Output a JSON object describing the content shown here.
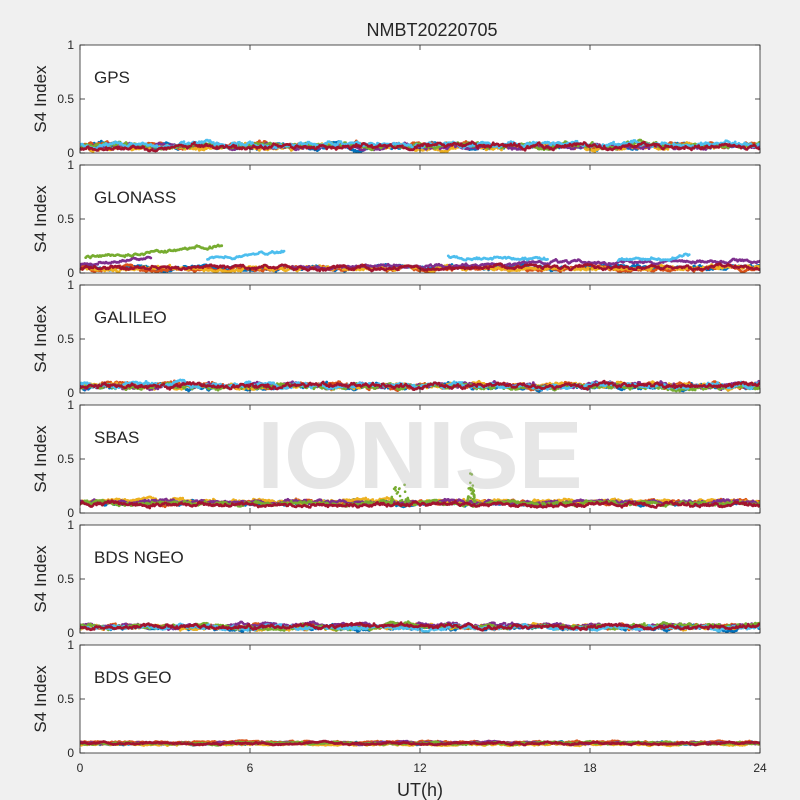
{
  "figure": {
    "title": "NMBT20220705",
    "xlabel": "UT(h)",
    "watermark": "IONISE"
  },
  "chart_data": [
    {
      "type": "scatter",
      "panel_label": "GPS",
      "ylabel": "S4 Index",
      "xlim": [
        0,
        24
      ],
      "ylim": [
        0,
        1
      ],
      "xticks": [
        0,
        6,
        12,
        18,
        24
      ],
      "yticks": [
        0,
        0.5,
        1
      ],
      "ytick_labels": [
        "0",
        "0.5",
        "1"
      ],
      "series": [
        {
          "color": "#0072BD",
          "segments": [
            {
              "x": [
                0,
                24
              ],
              "y": [
                0.06,
                0.06
              ],
              "amp": 0.03
            }
          ]
        },
        {
          "color": "#D95319",
          "segments": [
            {
              "x": [
                0,
                24
              ],
              "y": [
                0.07,
                0.07
              ],
              "amp": 0.03
            }
          ]
        },
        {
          "color": "#EDB120",
          "segments": [
            {
              "x": [
                0,
                24
              ],
              "y": [
                0.05,
                0.06
              ],
              "amp": 0.03
            }
          ]
        },
        {
          "color": "#7E2F8E",
          "segments": [
            {
              "x": [
                0,
                24
              ],
              "y": [
                0.06,
                0.06
              ],
              "amp": 0.03
            }
          ]
        },
        {
          "color": "#77AC30",
          "segments": [
            {
              "x": [
                0,
                24
              ],
              "y": [
                0.07,
                0.07
              ],
              "amp": 0.03
            }
          ]
        },
        {
          "color": "#4DBEEE",
          "segments": [
            {
              "x": [
                0,
                24
              ],
              "y": [
                0.08,
                0.08
              ],
              "amp": 0.03
            }
          ]
        },
        {
          "color": "#A2142F",
          "segments": [
            {
              "x": [
                0,
                24
              ],
              "y": [
                0.06,
                0.06
              ],
              "amp": 0.03
            }
          ]
        }
      ]
    },
    {
      "type": "scatter",
      "panel_label": "GLONASS",
      "ylabel": "S4 Index",
      "xlim": [
        0,
        24
      ],
      "ylim": [
        0,
        1
      ],
      "xticks": [
        0,
        6,
        12,
        18,
        24
      ],
      "yticks": [
        0,
        0.5,
        1
      ],
      "ytick_labels": [
        "0",
        "0.5",
        "1"
      ],
      "series": [
        {
          "color": "#0072BD",
          "segments": [
            {
              "x": [
                0,
                24
              ],
              "y": [
                0.05,
                0.05
              ],
              "amp": 0.025
            }
          ]
        },
        {
          "color": "#D95319",
          "segments": [
            {
              "x": [
                0,
                24
              ],
              "y": [
                0.04,
                0.04
              ],
              "amp": 0.025
            }
          ]
        },
        {
          "color": "#EDB120",
          "segments": [
            {
              "x": [
                0,
                24
              ],
              "y": [
                0.04,
                0.05
              ],
              "amp": 0.025
            }
          ]
        },
        {
          "color": "#7E2F8E",
          "segments": [
            {
              "x": [
                0,
                2.5
              ],
              "y": [
                0.07,
                0.15
              ],
              "amp": 0.02
            },
            {
              "x": [
                7.5,
                24
              ],
              "y": [
                0.05,
                0.12
              ],
              "amp": 0.02
            }
          ]
        },
        {
          "color": "#77AC30",
          "segments": [
            {
              "x": [
                0.2,
                5
              ],
              "y": [
                0.14,
                0.25
              ],
              "amp": 0.02
            }
          ]
        },
        {
          "color": "#4DBEEE",
          "segments": [
            {
              "x": [
                4.5,
                7.2
              ],
              "y": [
                0.13,
                0.2
              ],
              "amp": 0.02
            },
            {
              "x": [
                13,
                16.5
              ],
              "y": [
                0.15,
                0.13
              ],
              "amp": 0.02
            },
            {
              "x": [
                19,
                21.5
              ],
              "y": [
                0.12,
                0.16
              ],
              "amp": 0.02
            }
          ]
        },
        {
          "color": "#A2142F",
          "segments": [
            {
              "x": [
                0,
                24
              ],
              "y": [
                0.05,
                0.05
              ],
              "amp": 0.025
            }
          ]
        }
      ]
    },
    {
      "type": "scatter",
      "panel_label": "GALILEO",
      "ylabel": "S4 Index",
      "xlim": [
        0,
        24
      ],
      "ylim": [
        0,
        1
      ],
      "xticks": [
        0,
        6,
        12,
        18,
        24
      ],
      "yticks": [
        0,
        0.5,
        1
      ],
      "ytick_labels": [
        "0",
        "0.5",
        "1"
      ],
      "series": [
        {
          "color": "#0072BD",
          "segments": [
            {
              "x": [
                0,
                24
              ],
              "y": [
                0.06,
                0.06
              ],
              "amp": 0.03
            }
          ]
        },
        {
          "color": "#D95319",
          "segments": [
            {
              "x": [
                0,
                24
              ],
              "y": [
                0.07,
                0.07
              ],
              "amp": 0.03
            }
          ]
        },
        {
          "color": "#EDB120",
          "segments": [
            {
              "x": [
                0,
                24
              ],
              "y": [
                0.06,
                0.07
              ],
              "amp": 0.03
            }
          ]
        },
        {
          "color": "#7E2F8E",
          "segments": [
            {
              "x": [
                0,
                24
              ],
              "y": [
                0.07,
                0.07
              ],
              "amp": 0.03
            }
          ]
        },
        {
          "color": "#77AC30",
          "segments": [
            {
              "x": [
                0,
                24
              ],
              "y": [
                0.06,
                0.06
              ],
              "amp": 0.03
            }
          ]
        },
        {
          "color": "#4DBEEE",
          "segments": [
            {
              "x": [
                0,
                24
              ],
              "y": [
                0.07,
                0.07
              ],
              "amp": 0.03
            }
          ]
        },
        {
          "color": "#A2142F",
          "segments": [
            {
              "x": [
                0,
                24
              ],
              "y": [
                0.07,
                0.07
              ],
              "amp": 0.03
            }
          ]
        }
      ]
    },
    {
      "type": "scatter",
      "panel_label": "SBAS",
      "ylabel": "S4 Index",
      "xlim": [
        0,
        24
      ],
      "ylim": [
        0,
        1
      ],
      "xticks": [
        0,
        6,
        12,
        18,
        24
      ],
      "yticks": [
        0,
        0.5,
        1
      ],
      "ytick_labels": [
        "0",
        "0.5",
        "1"
      ],
      "series": [
        {
          "color": "#0072BD",
          "segments": [
            {
              "x": [
                0,
                24
              ],
              "y": [
                0.09,
                0.09
              ],
              "amp": 0.025
            }
          ]
        },
        {
          "color": "#D95319",
          "segments": [
            {
              "x": [
                0,
                24
              ],
              "y": [
                0.1,
                0.1
              ],
              "amp": 0.025
            }
          ]
        },
        {
          "color": "#EDB120",
          "segments": [
            {
              "x": [
                0,
                24
              ],
              "y": [
                0.11,
                0.11
              ],
              "amp": 0.025
            }
          ]
        },
        {
          "color": "#7E2F8E",
          "segments": [
            {
              "x": [
                0,
                24
              ],
              "y": [
                0.1,
                0.1
              ],
              "amp": 0.025
            }
          ]
        },
        {
          "color": "#77AC30",
          "segments": [
            {
              "x": [
                0,
                24
              ],
              "y": [
                0.09,
                0.09
              ],
              "amp": 0.025
            }
          ],
          "spikes": [
            {
              "x": 11.3,
              "y": 0.42,
              "width": 0.7
            },
            {
              "x": 13.8,
              "y": 0.44,
              "width": 0.3
            }
          ]
        },
        {
          "color": "#A2142F",
          "segments": [
            {
              "x": [
                0,
                24
              ],
              "y": [
                0.08,
                0.08
              ],
              "amp": 0.025
            }
          ]
        }
      ]
    },
    {
      "type": "scatter",
      "panel_label": "BDS NGEO",
      "ylabel": "S4 Index",
      "xlim": [
        0,
        24
      ],
      "ylim": [
        0,
        1
      ],
      "xticks": [
        0,
        6,
        12,
        18,
        24
      ],
      "yticks": [
        0,
        0.5,
        1
      ],
      "ytick_labels": [
        "0",
        "0.5",
        "1"
      ],
      "series": [
        {
          "color": "#0072BD",
          "segments": [
            {
              "x": [
                0,
                24
              ],
              "y": [
                0.05,
                0.05
              ],
              "amp": 0.025
            }
          ]
        },
        {
          "color": "#D95319",
          "segments": [
            {
              "x": [
                0,
                24
              ],
              "y": [
                0.06,
                0.06
              ],
              "amp": 0.025
            }
          ]
        },
        {
          "color": "#EDB120",
          "segments": [
            {
              "x": [
                0,
                24
              ],
              "y": [
                0.05,
                0.06
              ],
              "amp": 0.025
            }
          ]
        },
        {
          "color": "#7E2F8E",
          "segments": [
            {
              "x": [
                0,
                24
              ],
              "y": [
                0.07,
                0.07
              ],
              "amp": 0.025
            }
          ]
        },
        {
          "color": "#77AC30",
          "segments": [
            {
              "x": [
                0,
                24
              ],
              "y": [
                0.06,
                0.06
              ],
              "amp": 0.025
            }
          ]
        },
        {
          "color": "#4DBEEE",
          "segments": [
            {
              "x": [
                0,
                24
              ],
              "y": [
                0.05,
                0.05
              ],
              "amp": 0.025
            }
          ]
        },
        {
          "color": "#A2142F",
          "segments": [
            {
              "x": [
                0,
                24
              ],
              "y": [
                0.06,
                0.06
              ],
              "amp": 0.025
            }
          ]
        }
      ]
    },
    {
      "type": "scatter",
      "panel_label": "BDS GEO",
      "ylabel": "S4 Index",
      "xlim": [
        0,
        24
      ],
      "ylim": [
        0,
        1
      ],
      "xticks": [
        0,
        6,
        12,
        18,
        24
      ],
      "yticks": [
        0,
        0.5,
        1
      ],
      "ytick_labels": [
        "0",
        "0.5",
        "1"
      ],
      "xtick_labels": [
        "0",
        "6",
        "12",
        "18",
        "24"
      ],
      "series": [
        {
          "color": "#0072BD",
          "segments": [
            {
              "x": [
                0,
                24
              ],
              "y": [
                0.09,
                0.09
              ],
              "amp": 0.012
            }
          ]
        },
        {
          "color": "#D95319",
          "segments": [
            {
              "x": [
                0,
                24
              ],
              "y": [
                0.1,
                0.1
              ],
              "amp": 0.012
            }
          ]
        },
        {
          "color": "#EDB120",
          "segments": [
            {
              "x": [
                0,
                24
              ],
              "y": [
                0.08,
                0.08
              ],
              "amp": 0.012
            }
          ]
        },
        {
          "color": "#7E2F8E",
          "segments": [
            {
              "x": [
                0,
                24
              ],
              "y": [
                0.09,
                0.09
              ],
              "amp": 0.012
            }
          ]
        },
        {
          "color": "#77AC30",
          "segments": [
            {
              "x": [
                0,
                24
              ],
              "y": [
                0.09,
                0.09
              ],
              "amp": 0.012
            }
          ]
        },
        {
          "color": "#A2142F",
          "segments": [
            {
              "x": [
                0,
                24
              ],
              "y": [
                0.09,
                0.09
              ],
              "amp": 0.012
            }
          ]
        }
      ]
    }
  ]
}
